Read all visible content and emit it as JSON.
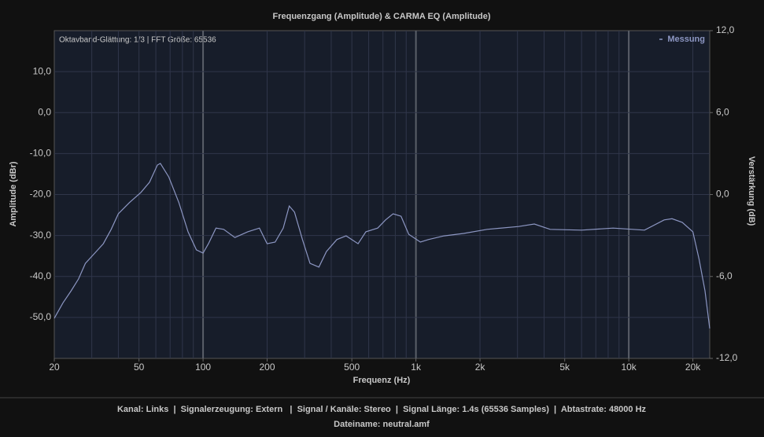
{
  "chart_data": {
    "type": "line",
    "title": "Frequenzgang (Amplitude) & CARMA EQ (Amplitude)",
    "annotation": "Oktavband-Glättung: 1/3 | FFT Größe: 65536",
    "x_label": "Frequenz (Hz)",
    "y_label": "Amplitude (dBr)",
    "y2_label": "Verstärkung (dB)",
    "x_scale": "log",
    "grid": true,
    "legend": "top-right",
    "xlim": [
      20,
      24000
    ],
    "xticks": [
      20,
      50,
      100,
      200,
      500,
      {
        "value": 1000,
        "label": "1k"
      },
      {
        "value": 2000,
        "label": "2k"
      },
      {
        "value": 5000,
        "label": "5k"
      },
      {
        "value": 10000,
        "label": "10k"
      },
      {
        "value": 20000,
        "label": "20k"
      }
    ],
    "ylim": [
      -60,
      20
    ],
    "yticks": [
      {
        "value": -50,
        "label": "-50,0"
      },
      {
        "value": -40,
        "label": "-40,0"
      },
      {
        "value": -30,
        "label": "-30,0"
      },
      {
        "value": -20,
        "label": "-20,0"
      },
      {
        "value": -10,
        "label": "-10,0"
      },
      {
        "value": 0,
        "label": "0,0"
      },
      {
        "value": 10,
        "label": "10,0"
      }
    ],
    "y2lim": [
      -12,
      12
    ],
    "y2ticks": [
      {
        "value": -12,
        "label": "-12,0"
      },
      {
        "value": -6,
        "label": "-6,0"
      },
      {
        "value": 0,
        "label": "0,0"
      },
      {
        "value": 6,
        "label": "6,0"
      },
      {
        "value": 12,
        "label": "12,0"
      }
    ],
    "x": [
      20,
      22,
      24,
      26,
      28,
      31,
      34,
      37,
      40,
      45,
      51,
      56,
      61,
      63,
      69,
      77,
      85,
      93,
      100,
      106,
      115,
      125,
      141,
      162,
      184,
      200,
      218,
      238,
      254,
      269,
      293,
      318,
      350,
      380,
      425,
      470,
      535,
      582,
      661,
      720,
      781,
      851,
      925,
      1050,
      1144,
      1356,
      1676,
      2160,
      3037,
      3600,
      4270,
      6000,
      8440,
      11850,
      14660,
      15960,
      17830,
      20000,
      21400,
      22800,
      24000
    ],
    "series": [
      {
        "name": "Messung",
        "color": "#8c96c2",
        "values": [
          -50.2,
          -46.4,
          -43.5,
          -40.6,
          -36.8,
          -34.3,
          -32,
          -28.5,
          -24.7,
          -22,
          -19.5,
          -17,
          -12.8,
          -12.4,
          -15.7,
          -22,
          -29.1,
          -33.5,
          -34.3,
          -32,
          -28.2,
          -28.5,
          -30.5,
          -29.1,
          -28.2,
          -32,
          -31.6,
          -28.2,
          -22.8,
          -24.3,
          -31,
          -36.8,
          -37.7,
          -33.9,
          -31,
          -30.1,
          -32,
          -29.1,
          -28.2,
          -26.2,
          -24.7,
          -25.3,
          -29.7,
          -31.6,
          -31,
          -30.1,
          -29.5,
          -28.5,
          -27.8,
          -27.2,
          -28.5,
          -28.7,
          -28.2,
          -28.7,
          -26.2,
          -25.9,
          -26.8,
          -29.1,
          -35.8,
          -43.5,
          -52.7
        ]
      }
    ]
  },
  "footer": {
    "line1": "Kanal: Links  |  Signalerzeugung: Extern   |  Signal / Kanäle: Stereo  |  Signal Länge: 1.4s (65536 Samples)  |  Abtastrate: 48000 Hz",
    "line2": "Dateiname: neutral.amf"
  }
}
